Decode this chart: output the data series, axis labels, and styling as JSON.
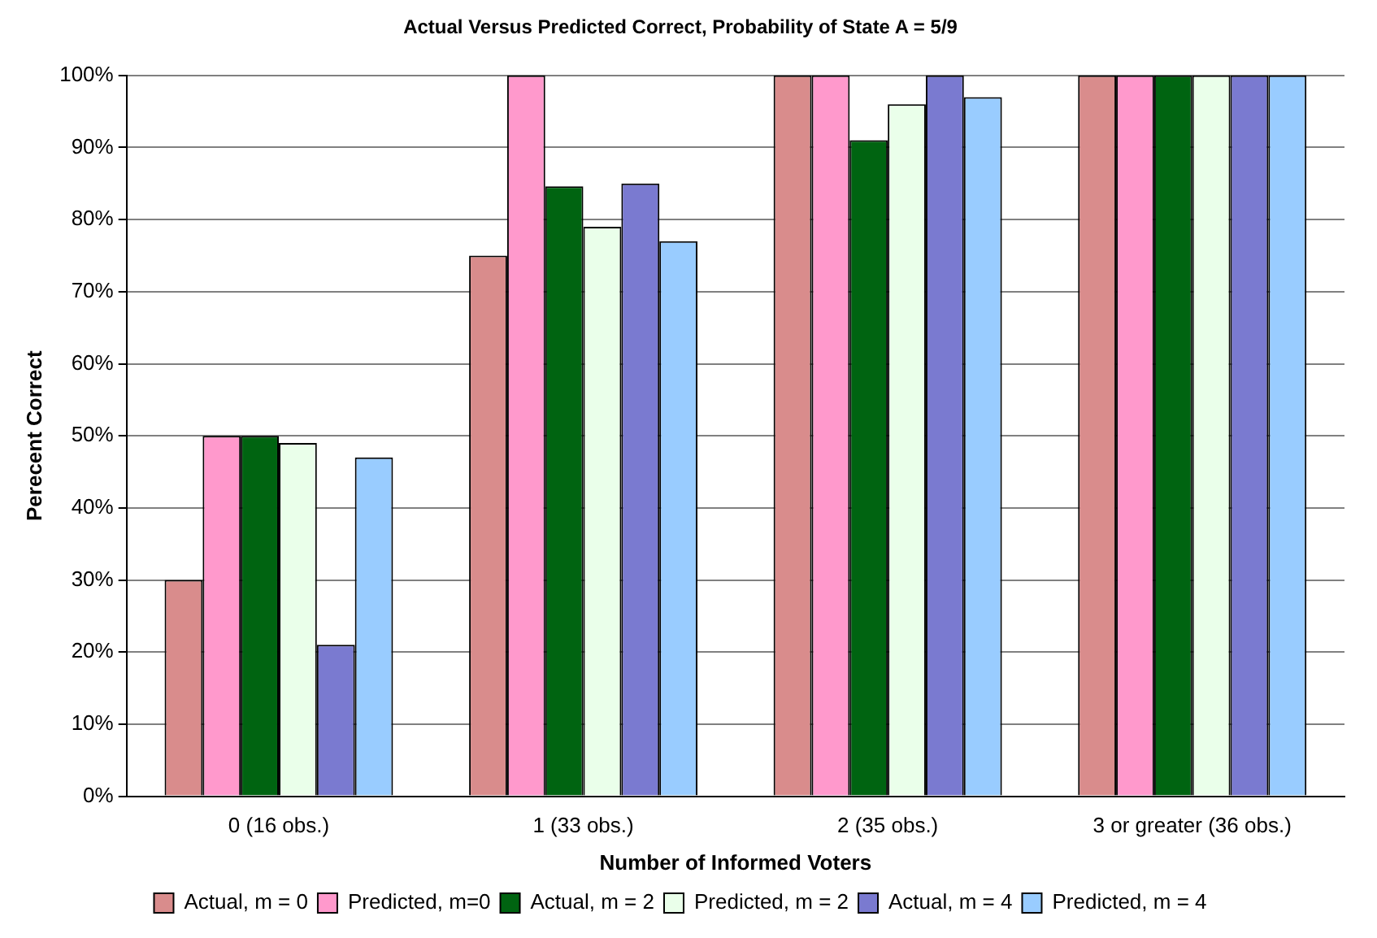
{
  "chart_data": {
    "type": "bar",
    "title": "Actual Versus Predicted Correct, Probability of State A = 5/9",
    "xlabel": "Number of Informed Voters",
    "ylabel": "Perecent Correct",
    "categories": [
      "0 (16 obs.)",
      "1 (33 obs.)",
      "2 (35 obs.)",
      "3 or greater (36 obs.)"
    ],
    "series": [
      {
        "name": "Actual, m = 0",
        "color": "#d98c8c",
        "values": [
          30,
          75,
          100,
          100
        ]
      },
      {
        "name": "Predicted, m=0",
        "color": "#ff99cc",
        "values": [
          50,
          100,
          100,
          100
        ]
      },
      {
        "name": "Actual, m = 2",
        "color": "#006411",
        "values": [
          50,
          84.6,
          91,
          100
        ]
      },
      {
        "name": "Predicted, m = 2",
        "color": "#eaffea",
        "values": [
          49,
          79,
          96,
          100
        ]
      },
      {
        "name": "Actual, m = 4",
        "color": "#7a7ad0",
        "values": [
          21,
          85,
          100,
          100
        ]
      },
      {
        "name": "Predicted, m = 4",
        "color": "#99ccff",
        "values": [
          47,
          77,
          97,
          100
        ]
      }
    ],
    "ylim": [
      0,
      100
    ],
    "yticks": [
      {
        "value": 0,
        "label": "0%"
      },
      {
        "value": 10,
        "label": "10%"
      },
      {
        "value": 20,
        "label": "20%"
      },
      {
        "value": 30,
        "label": "30%"
      },
      {
        "value": 40,
        "label": "40%"
      },
      {
        "value": 50,
        "label": "50%"
      },
      {
        "value": 60,
        "label": "60%"
      },
      {
        "value": 70,
        "label": "70%"
      },
      {
        "value": 80,
        "label": "80%"
      },
      {
        "value": 90,
        "label": "90%"
      },
      {
        "value": 100,
        "label": "100%"
      }
    ],
    "grid": "y",
    "legend": "bottom"
  }
}
